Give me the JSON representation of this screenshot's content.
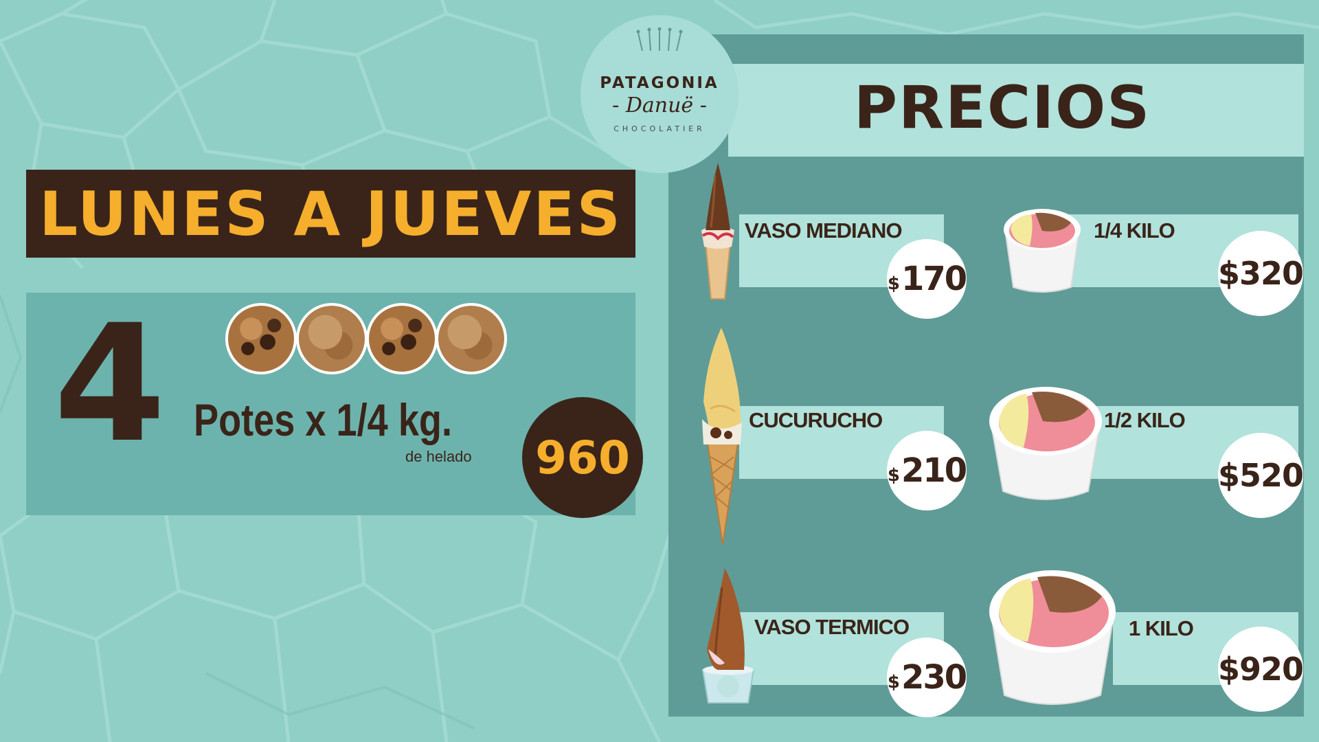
{
  "logo": {
    "brand": "PATAGONIA",
    "script": "- Danuë -",
    "subtitle": "CHOCOLATIER"
  },
  "promo": {
    "days": "LUNES A JUEVES",
    "quantity": "4",
    "description": "Potes x 1/4 kg.",
    "subtext": "de helado",
    "price": "960",
    "pot_count": 4
  },
  "prices": {
    "title": "PRECIOS",
    "currency": "$",
    "items": [
      {
        "label": "VASO MEDIANO",
        "amount": "170"
      },
      {
        "label": "CUCURUCHO",
        "amount": "210"
      },
      {
        "label": "VASO TERMICO",
        "amount": "230"
      },
      {
        "label": "1/4 KILO",
        "price": "$320"
      },
      {
        "label": "1/2 KILO",
        "price": "$520"
      },
      {
        "label": "1 KILO",
        "price": "$920"
      }
    ]
  },
  "colors": {
    "background": "#8fcfc6",
    "dark_brown": "#3a2419",
    "accent_yellow": "#f6ae2d",
    "panel_teal": "#5f9c97",
    "bar_light": "#b1e2db"
  }
}
